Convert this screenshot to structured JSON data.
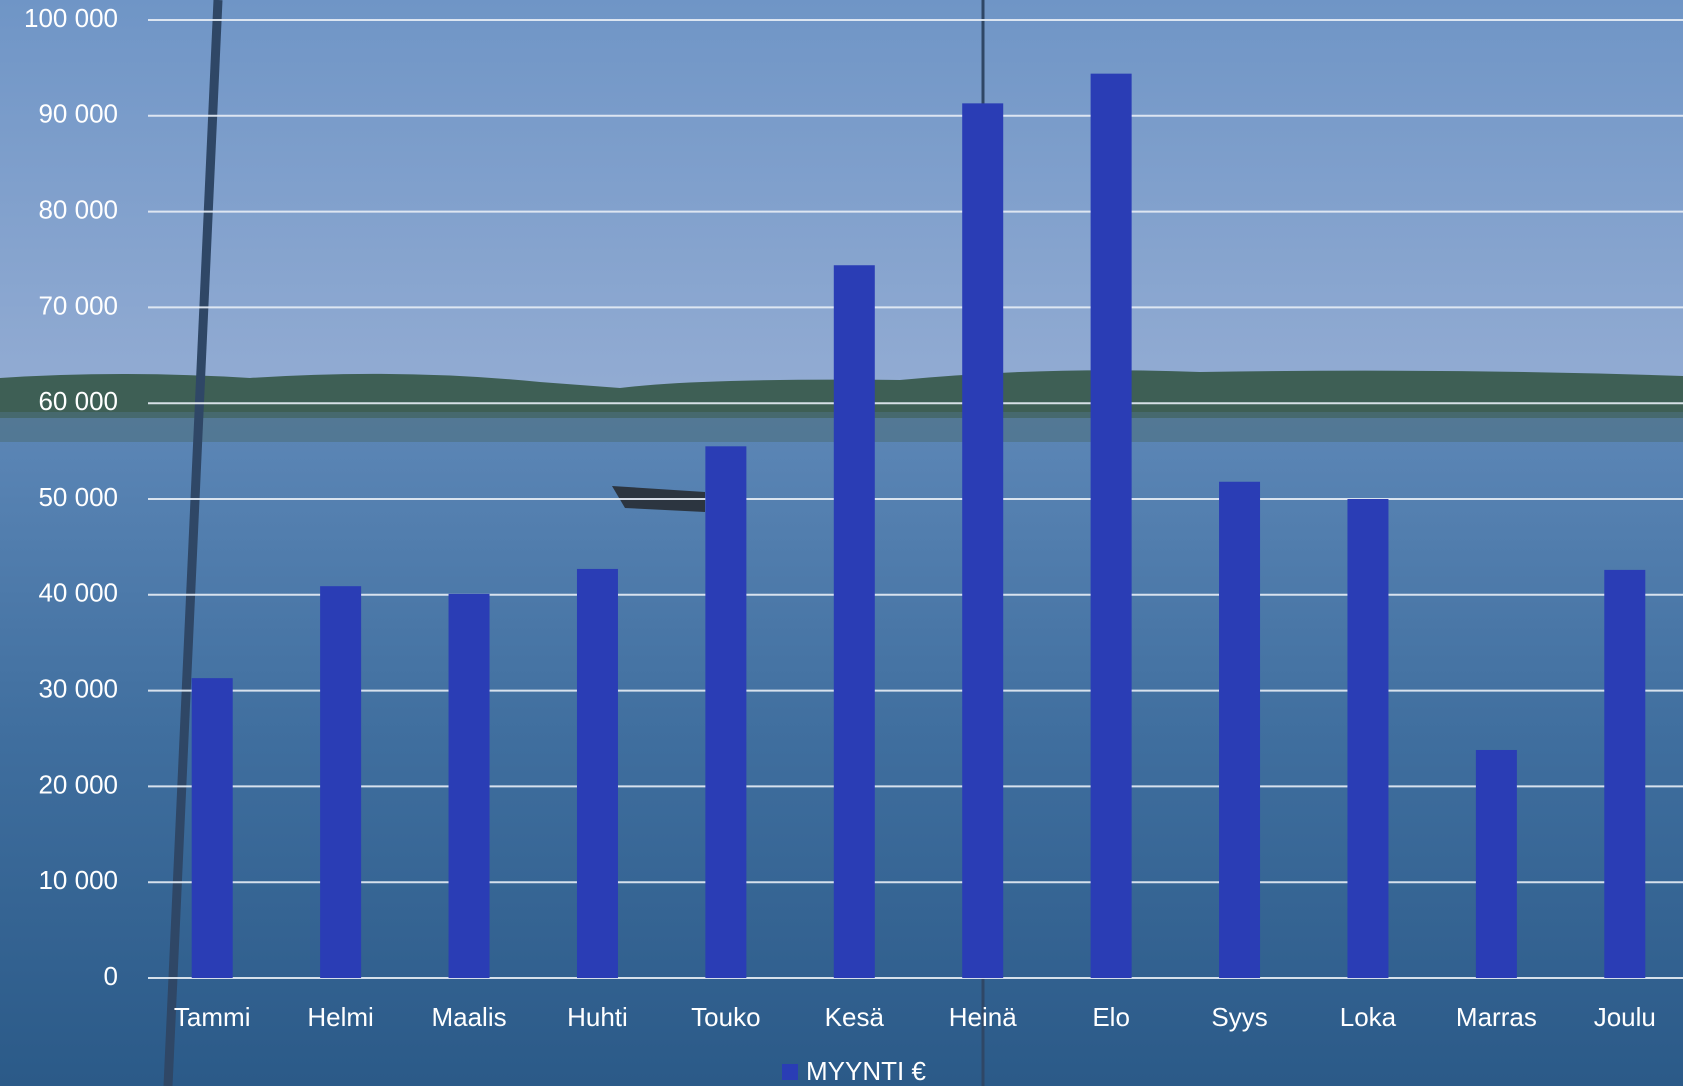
{
  "chart_data": {
    "type": "bar",
    "categories": [
      "Tammi",
      "Helmi",
      "Maalis",
      "Huhti",
      "Touko",
      "Kesä",
      "Heinä",
      "Elo",
      "Syys",
      "Loka",
      "Marras",
      "Joulu"
    ],
    "series": [
      {
        "name": "MYYNTI €",
        "color": "#2a3db5",
        "values": [
          31300,
          40900,
          40100,
          42700,
          55500,
          74400,
          91300,
          94400,
          51800,
          50000,
          23800,
          42600
        ]
      }
    ],
    "ylim": [
      0,
      100000
    ],
    "yticks": [
      0,
      {
        "value": 10000,
        "label": "10 000"
      },
      {
        "value": 20000,
        "label": "20 000"
      },
      {
        "value": 30000,
        "label": "30 000"
      },
      {
        "value": 40000,
        "label": "40 000"
      },
      {
        "value": 50000,
        "label": "50 000"
      },
      {
        "value": 60000,
        "label": "60 000"
      },
      {
        "value": 70000,
        "label": "70 000"
      },
      {
        "value": 80000,
        "label": "80 000"
      },
      {
        "value": 90000,
        "label": "90 000"
      },
      {
        "value": 100000,
        "label": "100 000"
      }
    ],
    "grid": true,
    "legend": "bottom"
  }
}
